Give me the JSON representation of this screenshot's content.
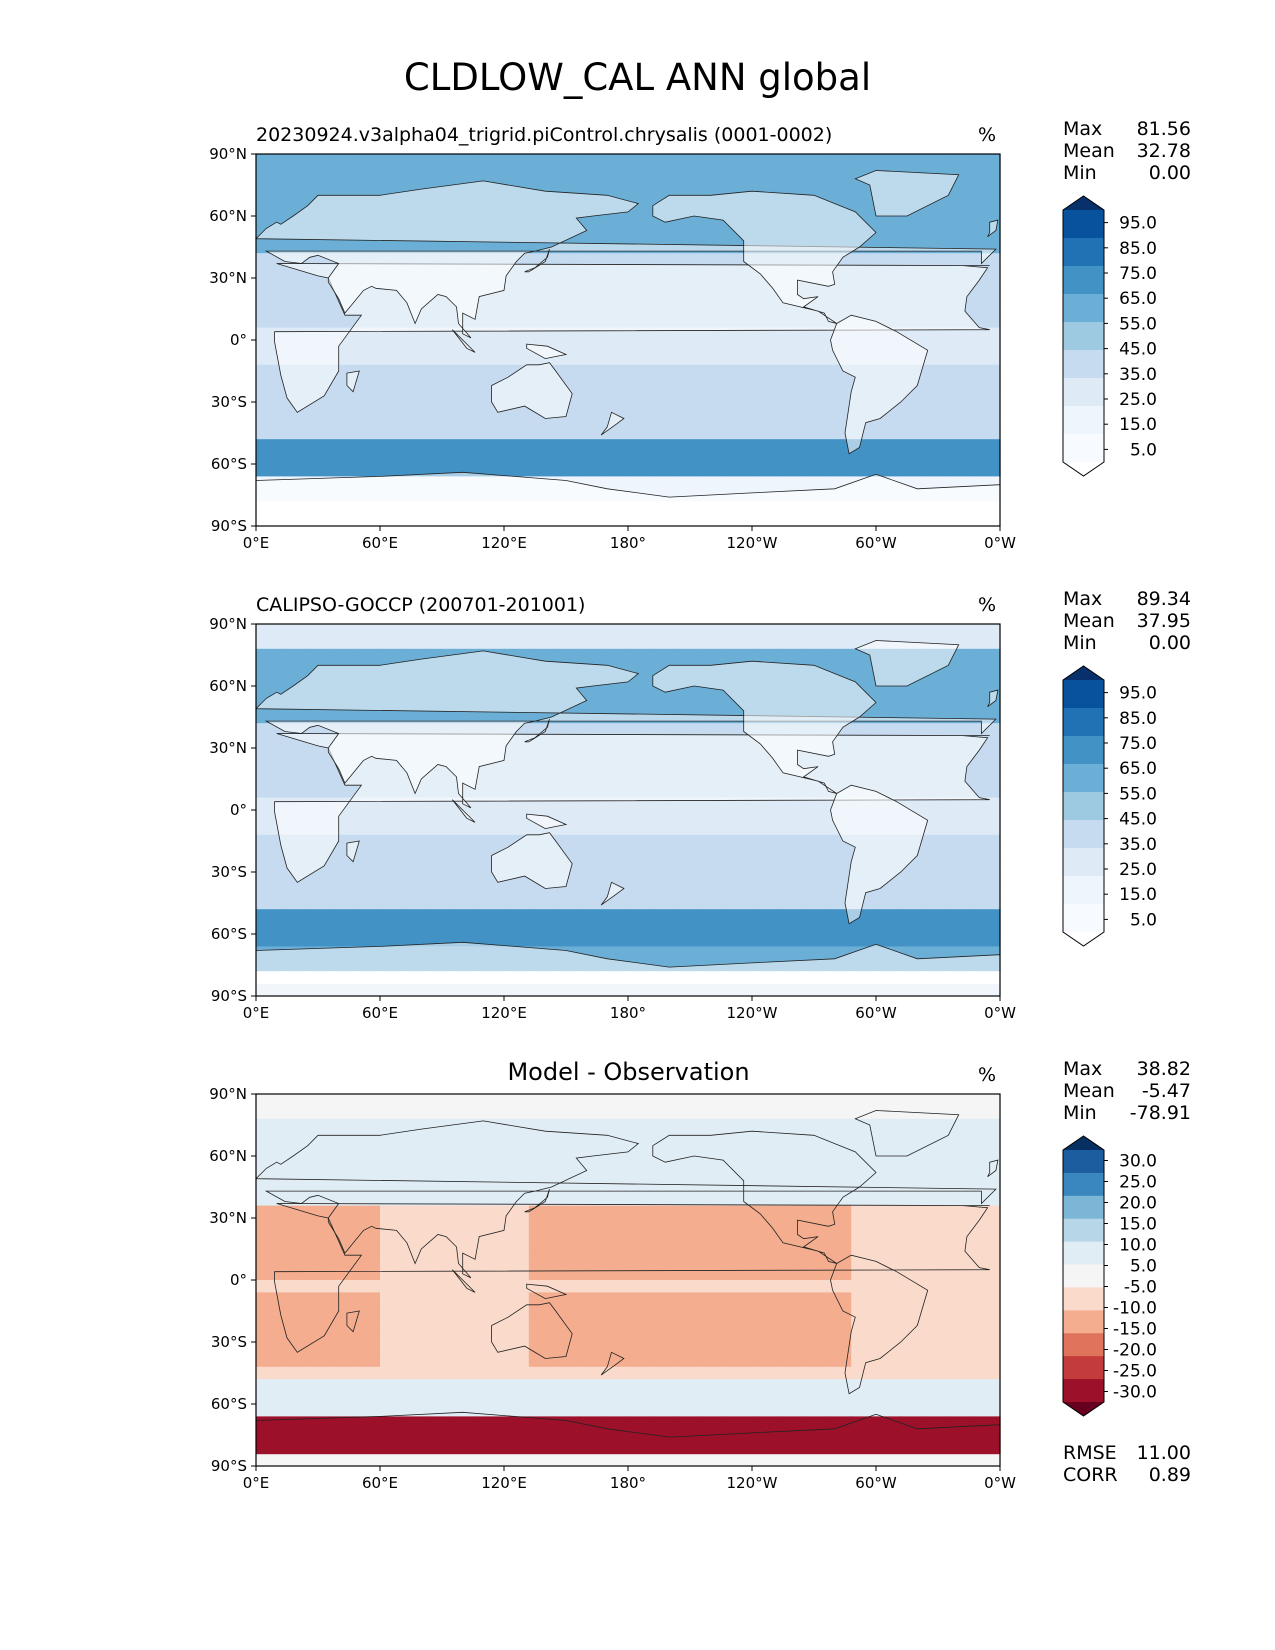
{
  "title": "CLDLOW_CAL ANN global",
  "axes": {
    "lat_ticks": [
      "90°N",
      "60°N",
      "30°N",
      "0°",
      "30°S",
      "60°S",
      "90°S"
    ],
    "lon_ticks": [
      "0°E",
      "60°E",
      "120°E",
      "180°",
      "120°W",
      "60°W",
      "0°W"
    ]
  },
  "panels": [
    {
      "title": "20230924.v3alpha04_trigrid.piControl.chrysalis (0001-0002)",
      "title_position": "left",
      "units": "%",
      "stats": [
        {
          "label": "Max",
          "value": "81.56"
        },
        {
          "label": "Mean",
          "value": "32.78"
        },
        {
          "label": "Min",
          "value": "0.00"
        }
      ],
      "colormap": "Blues",
      "colorbar": {
        "labels": [
          "95.0",
          "85.0",
          "75.0",
          "65.0",
          "55.0",
          "45.0",
          "35.0",
          "25.0",
          "15.0",
          "5.0"
        ],
        "colors": [
          "#08306b",
          "#08519c",
          "#2171b5",
          "#4292c6",
          "#6baed6",
          "#9ecae1",
          "#c6dbef",
          "#deebf7",
          "#eef5fc",
          "#f7fbff",
          "#ffffff"
        ]
      },
      "chart_data": {
        "type": "heatmap",
        "variable": "CLDLOW_CAL",
        "units": "%",
        "max": 81.56,
        "mean": 32.78,
        "min": 0.0,
        "levels": [
          5,
          15,
          25,
          35,
          45,
          55,
          65,
          75,
          85,
          95
        ]
      }
    },
    {
      "title": "CALIPSO-GOCCP (200701-201001)",
      "title_position": "left",
      "units": "%",
      "stats": [
        {
          "label": "Max",
          "value": "89.34"
        },
        {
          "label": "Mean",
          "value": "37.95"
        },
        {
          "label": "Min",
          "value": "0.00"
        }
      ],
      "colormap": "Blues",
      "colorbar": {
        "labels": [
          "95.0",
          "85.0",
          "75.0",
          "65.0",
          "55.0",
          "45.0",
          "35.0",
          "25.0",
          "15.0",
          "5.0"
        ],
        "colors": [
          "#08306b",
          "#08519c",
          "#2171b5",
          "#4292c6",
          "#6baed6",
          "#9ecae1",
          "#c6dbef",
          "#deebf7",
          "#eef5fc",
          "#f7fbff",
          "#ffffff"
        ]
      },
      "chart_data": {
        "type": "heatmap",
        "variable": "CLDLOW_CAL",
        "units": "%",
        "max": 89.34,
        "mean": 37.95,
        "min": 0.0,
        "levels": [
          5,
          15,
          25,
          35,
          45,
          55,
          65,
          75,
          85,
          95
        ]
      }
    },
    {
      "title": "Model - Observation",
      "title_position": "center",
      "units": "%",
      "stats": [
        {
          "label": "Max",
          "value": "38.82"
        },
        {
          "label": "Mean",
          "value": "-5.47"
        },
        {
          "label": "Min",
          "value": "-78.91"
        }
      ],
      "colormap": "RdBu",
      "colorbar": {
        "labels": [
          "30.0",
          "25.0",
          "20.0",
          "15.0",
          "10.0",
          "5.0",
          "-5.0",
          "-10.0",
          "-15.0",
          "-20.0",
          "-25.0",
          "-30.0"
        ],
        "colors": [
          "#053061",
          "#1c5d9f",
          "#3a87bf",
          "#7cb6d7",
          "#b7d7e8",
          "#e1edf4",
          "#f5f5f5",
          "#fadbcb",
          "#f4ad8f",
          "#e0735b",
          "#c33b3a",
          "#9c1029",
          "#67001f"
        ]
      },
      "footer": [
        {
          "label": "RMSE",
          "value": "11.00"
        },
        {
          "label": "CORR",
          "value": "0.89"
        }
      ],
      "chart_data": {
        "type": "heatmap",
        "variable": "CLDLOW_CAL difference",
        "units": "%",
        "max": 38.82,
        "mean": -5.47,
        "min": -78.91,
        "rmse": 11.0,
        "corr": 0.89,
        "levels": [
          -30,
          -25,
          -20,
          -15,
          -10,
          -5,
          5,
          10,
          15,
          20,
          25,
          30
        ]
      }
    }
  ]
}
